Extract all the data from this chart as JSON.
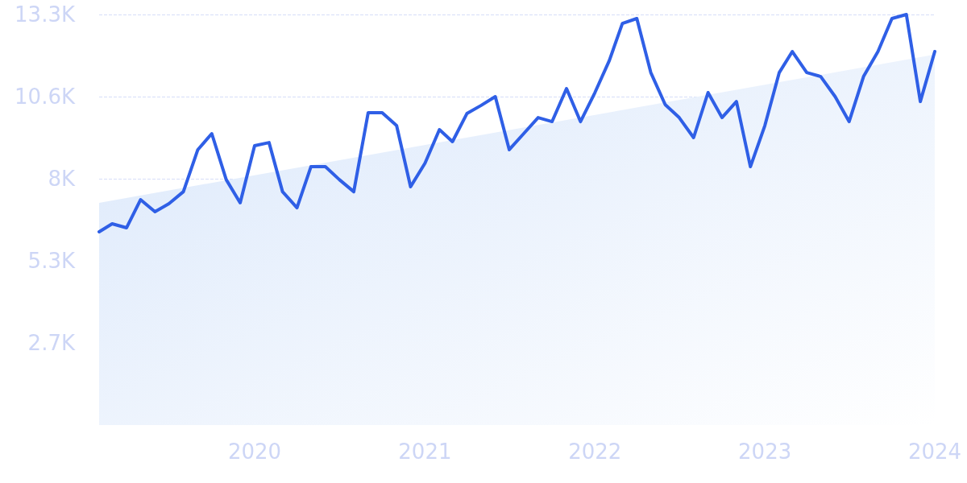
{
  "chart_data": {
    "type": "line",
    "x": [
      "2019-02",
      "2019-03",
      "2019-04",
      "2019-05",
      "2019-06",
      "2019-07",
      "2019-08",
      "2019-09",
      "2019-10",
      "2019-11",
      "2019-12",
      "2020-01",
      "2020-02",
      "2020-03",
      "2020-04",
      "2020-05",
      "2020-06",
      "2020-07",
      "2020-08",
      "2020-09",
      "2020-10",
      "2020-11",
      "2020-12",
      "2021-01",
      "2021-02",
      "2021-03",
      "2021-04",
      "2021-05",
      "2021-06",
      "2021-07",
      "2021-08",
      "2021-09",
      "2021-10",
      "2021-11",
      "2021-12",
      "2022-01",
      "2022-02",
      "2022-03",
      "2022-04",
      "2022-05",
      "2022-06",
      "2022-07",
      "2022-08",
      "2022-09",
      "2022-10",
      "2022-11",
      "2022-12",
      "2023-01",
      "2023-02",
      "2023-03",
      "2023-04",
      "2023-05",
      "2023-06",
      "2023-07",
      "2023-08",
      "2023-09",
      "2023-10",
      "2023-11",
      "2023-12",
      "2024-01"
    ],
    "series": [
      {
        "type": "area",
        "color": "#dbe8fb",
        "x": [
          "2019-02",
          "2024-01"
        ],
        "values": [
          7200,
          12000
        ]
      },
      {
        "color": "#2f5fe6",
        "values": [
          6260,
          6520,
          6390,
          7300,
          6910,
          7170,
          7560,
          8920,
          9440,
          7950,
          7200,
          9050,
          9150,
          7560,
          7040,
          8370,
          8370,
          7950,
          7560,
          10120,
          10120,
          9700,
          7720,
          8480,
          9570,
          9180,
          10090,
          10350,
          10640,
          8920,
          9440,
          9960,
          9830,
          10900,
          9830,
          10770,
          11810,
          13010,
          13170,
          11420,
          10380,
          9960,
          9310,
          10770,
          9960,
          10480,
          8370,
          9700,
          11420,
          12100,
          11420,
          11290,
          10640,
          9830,
          11290,
          12100,
          13170,
          13300,
          10480,
          12100
        ]
      }
    ],
    "xlim": [
      "2019-02",
      "2024-01"
    ],
    "xticks": [
      {
        "value": "2020",
        "label": "2020"
      },
      {
        "value": "2021",
        "label": "2021"
      },
      {
        "value": "2022",
        "label": "2022"
      },
      {
        "value": "2023",
        "label": "2023"
      },
      {
        "value": "2024",
        "label": "2024"
      }
    ],
    "ylim": [
      0,
      13300
    ],
    "yticks": [
      {
        "value": 2660,
        "label": "2.7K"
      },
      {
        "value": 5320,
        "label": "5.3K"
      },
      {
        "value": 7980,
        "label": "8K"
      },
      {
        "value": 10640,
        "label": "10.6K"
      },
      {
        "value": 13300,
        "label": "13.3K"
      }
    ],
    "grid": "y",
    "marker": "none",
    "line_style": "solid"
  }
}
